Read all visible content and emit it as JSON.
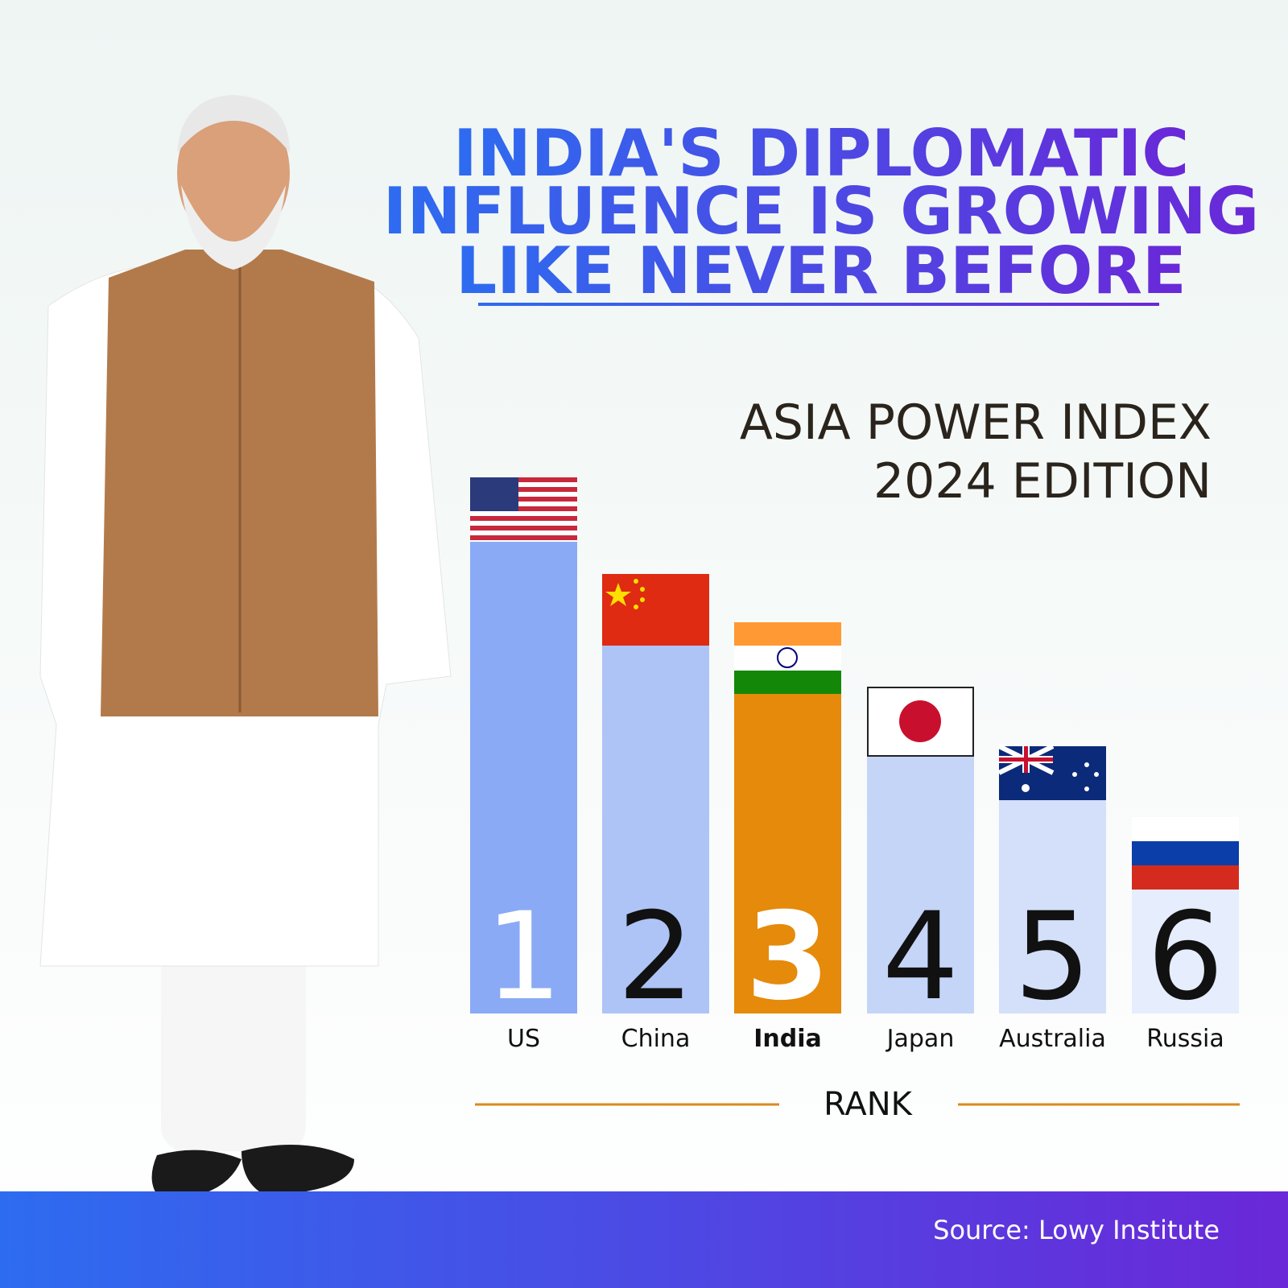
{
  "header": {
    "title_lines": [
      "INDIA'S DIPLOMATIC",
      "INFLUENCE IS GROWING",
      "LIKE NEVER BEFORE"
    ]
  },
  "index": {
    "title_lines": [
      "ASIA POWER INDEX",
      "2024 EDITION"
    ]
  },
  "ranking": {
    "entries": [
      {
        "rank": 1,
        "country": "US"
      },
      {
        "rank": 2,
        "country": "China"
      },
      {
        "rank": 3,
        "country": "India"
      },
      {
        "rank": 4,
        "country": "Japan"
      },
      {
        "rank": 5,
        "country": "Australia"
      },
      {
        "rank": 6,
        "country": "Russia"
      }
    ],
    "axis_label": "RANK"
  },
  "footer": {
    "source": "Source: Lowy Institute"
  }
}
